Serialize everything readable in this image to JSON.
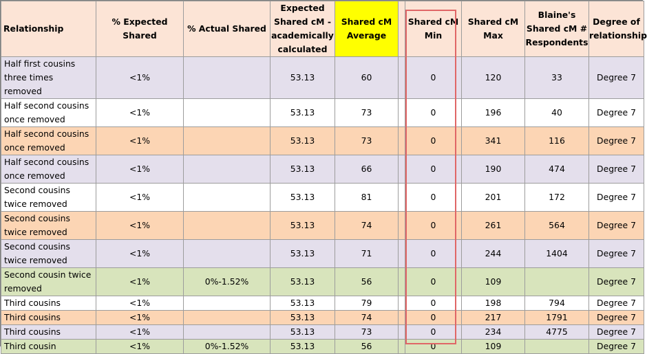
{
  "headers": {
    "relationship": "Relationship",
    "expected_pct": "% Expected Shared",
    "actual_pct": "% Actual Shared",
    "expected_cm_lines": [
      "Expected",
      "Shared cM -",
      "academically",
      "calculated"
    ],
    "avg_lines": [
      "Shared cM",
      "Average"
    ],
    "min_lines": [
      "Shared cM",
      "Min"
    ],
    "max_lines": [
      "Shared cM",
      "Max"
    ],
    "respondents_lines": [
      "Blaine's",
      "Shared cM #",
      "Respondents"
    ],
    "degree_lines": [
      "Degree of",
      "relationship"
    ]
  },
  "rows": [
    {
      "rel": [
        "Half first cousins",
        "three times",
        "removed"
      ],
      "exp": "<1%",
      "act": "",
      "calc": "53.13",
      "avg": "60",
      "min": "0",
      "max": "120",
      "resp": "33",
      "deg": "Degree 7",
      "color": "lav"
    },
    {
      "rel": [
        "Half second cousins",
        "once removed"
      ],
      "exp": "<1%",
      "act": "",
      "calc": "53.13",
      "avg": "73",
      "min": "0",
      "max": "196",
      "resp": "40",
      "deg": "Degree 7",
      "color": "wht"
    },
    {
      "rel": [
        "Half second cousins",
        "once removed"
      ],
      "exp": "<1%",
      "act": "",
      "calc": "53.13",
      "avg": "73",
      "min": "0",
      "max": "341",
      "resp": "116",
      "deg": "Degree 7",
      "color": "pch"
    },
    {
      "rel": [
        "Half second cousins",
        "once removed"
      ],
      "exp": "<1%",
      "act": "",
      "calc": "53.13",
      "avg": "66",
      "min": "0",
      "max": "190",
      "resp": "474",
      "deg": "Degree 7",
      "color": "lav"
    },
    {
      "rel": [
        "Second cousins",
        "twice removed"
      ],
      "exp": "<1%",
      "act": "",
      "calc": "53.13",
      "avg": "81",
      "min": "0",
      "max": "201",
      "resp": "172",
      "deg": "Degree 7",
      "color": "wht"
    },
    {
      "rel": [
        "Second cousins",
        "twice removed"
      ],
      "exp": "<1%",
      "act": "",
      "calc": "53.13",
      "avg": "74",
      "min": "0",
      "max": "261",
      "resp": "564",
      "deg": "Degree 7",
      "color": "pch"
    },
    {
      "rel": [
        "Second cousins",
        "twice removed"
      ],
      "exp": "<1%",
      "act": "",
      "calc": "53.13",
      "avg": "71",
      "min": "0",
      "max": "244",
      "resp": "1404",
      "deg": "Degree 7",
      "color": "lav"
    },
    {
      "rel": [
        "Second cousin twice",
        "removed"
      ],
      "exp": "<1%",
      "act": "0%-1.52%",
      "calc": "53.13",
      "avg": "56",
      "min": "0",
      "max": "109",
      "resp": "",
      "deg": "Degree 7",
      "color": "grn"
    },
    {
      "rel": [
        "Third cousins"
      ],
      "exp": "<1%",
      "act": "",
      "calc": "53.13",
      "avg": "79",
      "min": "0",
      "max": "198",
      "resp": "794",
      "deg": "Degree 7",
      "color": "wht"
    },
    {
      "rel": [
        "Third cousins"
      ],
      "exp": "<1%",
      "act": "",
      "calc": "53.13",
      "avg": "74",
      "min": "0",
      "max": "217",
      "resp": "1791",
      "deg": "Degree 7",
      "color": "pch"
    },
    {
      "rel": [
        "Third cousins"
      ],
      "exp": "<1%",
      "act": "",
      "calc": "53.13",
      "avg": "73",
      "min": "0",
      "max": "234",
      "resp": "4775",
      "deg": "Degree 7",
      "color": "lav"
    },
    {
      "rel": [
        "Third cousin"
      ],
      "exp": "<1%",
      "act": "0%-1.52%",
      "calc": "53.13",
      "avg": "56",
      "min": "0",
      "max": "109",
      "resp": "",
      "deg": "Degree 7",
      "color": "grn"
    }
  ],
  "colors": {
    "header_bg": "#fce4d6",
    "highlight_yellow": "#ffff00",
    "row_lavender": "#e4dfec",
    "row_peach": "#fcd5b4",
    "row_green": "#d8e4bc",
    "min_column_outline": "#e06666"
  }
}
